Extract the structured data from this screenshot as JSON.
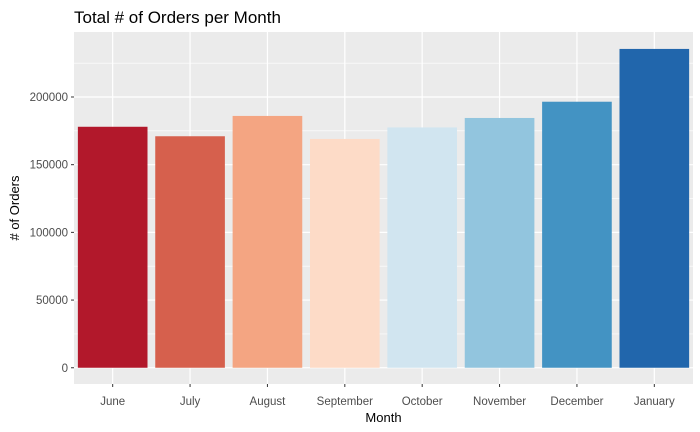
{
  "chart_data": {
    "type": "bar",
    "title": "Total # of Orders per Month",
    "xlabel": "Month",
    "ylabel": "# of Orders",
    "categories": [
      "June",
      "July",
      "August",
      "September",
      "October",
      "November",
      "December",
      "January"
    ],
    "values": [
      178000,
      171000,
      186000,
      169000,
      177500,
      184500,
      196500,
      235500
    ],
    "bar_colors": [
      "#B2182B",
      "#D6604D",
      "#F4A582",
      "#FDDBC7",
      "#D1E5F0",
      "#92C5DE",
      "#4393C3",
      "#2166AC"
    ],
    "ylim": [
      -12000,
      248000
    ],
    "yticks": [
      0,
      50000,
      100000,
      150000,
      200000
    ],
    "ytick_labels": [
      "0",
      "50000",
      "100000",
      "150000",
      "200000"
    ],
    "grid": true,
    "legend": "none",
    "panel_background": "#EBEBEB",
    "grid_color": "#FFFFFF"
  }
}
